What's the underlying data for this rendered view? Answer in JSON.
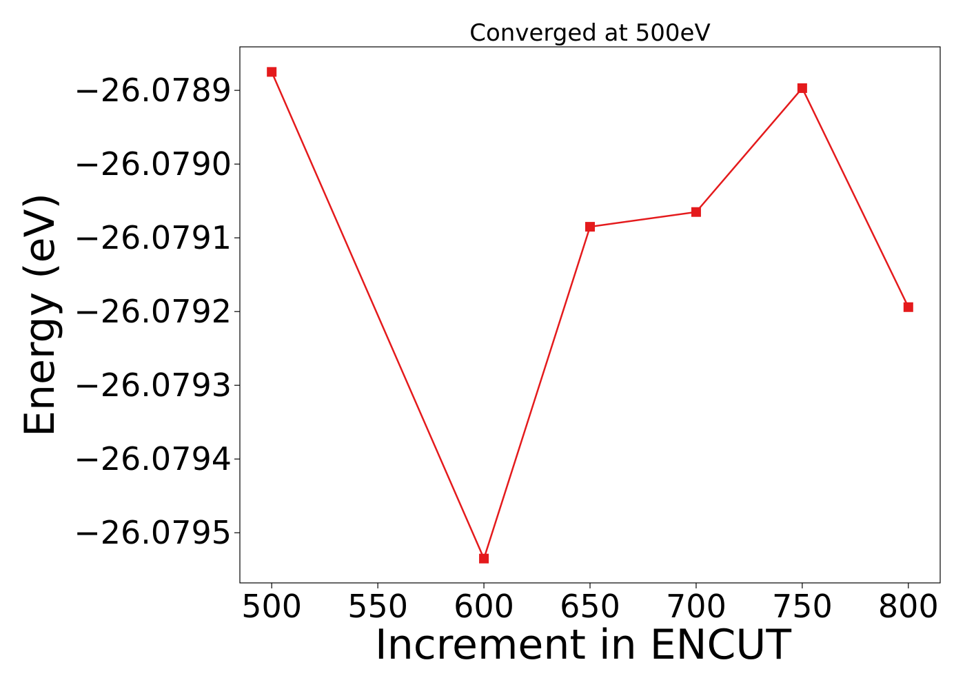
{
  "chart_data": {
    "type": "line",
    "title": "Converged at 500eV",
    "xlabel": "Increment in ENCUT",
    "ylabel": "Energy (eV)",
    "x": [
      500,
      600,
      650,
      700,
      750,
      800
    ],
    "series": [
      {
        "values": [
          -26.078875,
          -26.079535,
          -26.079085,
          -26.079065,
          -26.078897,
          -26.079194
        ],
        "color": "#e41a1c",
        "marker": "square"
      }
    ],
    "xlim": [
      485,
      815
    ],
    "ylim": [
      -26.079568,
      -26.078841
    ],
    "xticks": [
      500,
      550,
      600,
      650,
      700,
      750,
      800
    ],
    "xtick_labels": [
      "500",
      "550",
      "600",
      "650",
      "700",
      "750",
      "800"
    ],
    "yticks": [
      -26.0789,
      -26.079,
      -26.0791,
      -26.0792,
      -26.0793,
      -26.0794,
      -26.0795
    ],
    "ytick_labels": [
      "−26.0789",
      "−26.0790",
      "−26.0791",
      "−26.0792",
      "−26.0793",
      "−26.0794",
      "−26.0795"
    ],
    "grid": false,
    "legend": false
  }
}
